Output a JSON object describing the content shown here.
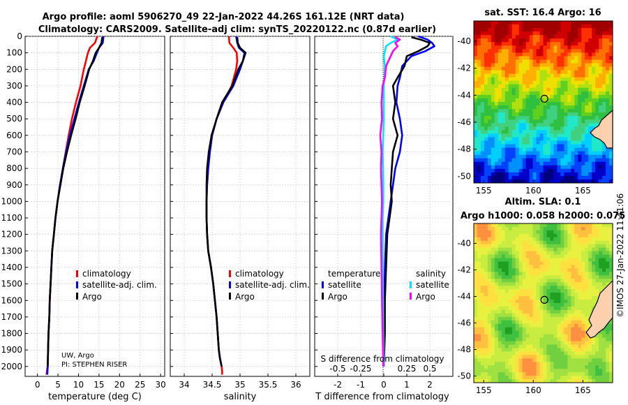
{
  "title_line1": "Argo profile: aoml 5906270_49 22-Jan-2022 44.26S 161.12E (NRT data)",
  "title_line2": "Climatology: CARS2009. Satellite-adj clim: synTS_20220122.nc (0.87d earlier)",
  "depth_ticks": [
    0,
    100,
    200,
    300,
    400,
    500,
    600,
    700,
    800,
    900,
    1000,
    1100,
    1200,
    1300,
    1400,
    1500,
    1600,
    1700,
    1800,
    1900,
    2000
  ],
  "footer": {
    "line1": "UW, Argo",
    "line2": "PI: STEPHEN RISER"
  },
  "colors": {
    "climatology": "#ff0000",
    "satellite": "#0000ff",
    "argo": "#000000",
    "sat_salinity": "#00e5ff",
    "argo_salinity": "#ff00ff"
  },
  "chart_data": [
    {
      "type": "line",
      "xlabel": "temperature (deg C)",
      "xlim": [
        -3,
        31
      ],
      "xticks": [
        0,
        5,
        10,
        15,
        20,
        25,
        30
      ],
      "ylim": [
        2060,
        0
      ],
      "legend": [
        "climatology",
        "satellite-adj. clim.",
        "Argo"
      ],
      "series": [
        {
          "name": "climatology",
          "x": [
            14.6,
            14.0,
            12.8,
            12.3,
            11.8,
            11.3,
            10.5,
            9.4,
            8.4,
            7.6,
            6.9,
            6.2,
            5.5,
            4.9,
            4.4,
            4.0,
            3.6,
            3.4,
            3.2,
            3.0,
            2.9,
            2.7,
            2.6,
            2.5,
            2.4,
            2.3,
            2.2
          ],
          "y": [
            0,
            40,
            70,
            100,
            150,
            200,
            300,
            400,
            500,
            600,
            700,
            800,
            900,
            1000,
            1100,
            1200,
            1300,
            1400,
            1500,
            1600,
            1700,
            1800,
            1900,
            2000,
            2010,
            2030,
            2050
          ]
        },
        {
          "name": "satellite-adj. clim.",
          "x": [
            16.1,
            15.9,
            15.0,
            14.5,
            13.7,
            12.5,
            11.3,
            10.1,
            9.0,
            7.9,
            7.0,
            6.2,
            5.5,
            4.9,
            4.4,
            4.0,
            3.6,
            3.4,
            3.2,
            3.0,
            2.9,
            2.7,
            2.6,
            2.5,
            2.4
          ],
          "y": [
            0,
            40,
            70,
            100,
            150,
            200,
            300,
            400,
            500,
            600,
            700,
            800,
            900,
            1000,
            1100,
            1200,
            1300,
            1400,
            1500,
            1600,
            1700,
            1800,
            1900,
            2000,
            2050
          ]
        },
        {
          "name": "Argo",
          "x": [
            15.8,
            15.6,
            15.0,
            14.2,
            13.5,
            12.6,
            11.5,
            10.3,
            9.3,
            8.2,
            7.2,
            6.3,
            5.6,
            4.9,
            4.4,
            4.0,
            3.6,
            3.4,
            3.2,
            3.0,
            2.9,
            2.7,
            2.6,
            2.5
          ],
          "y": [
            5,
            40,
            70,
            100,
            150,
            200,
            300,
            400,
            500,
            600,
            700,
            800,
            900,
            1000,
            1100,
            1200,
            1300,
            1400,
            1500,
            1600,
            1700,
            1800,
            1900,
            2000
          ]
        }
      ]
    },
    {
      "type": "line",
      "xlabel": "salinity",
      "xlim": [
        33.75,
        36.25
      ],
      "xticks": [
        34,
        34.5,
        35,
        35.5,
        36
      ],
      "ylim": [
        2060,
        0
      ],
      "legend": [
        "climatology",
        "satellite-adj. clim.",
        "Argo"
      ],
      "series": [
        {
          "name": "climatology",
          "x": [
            34.8,
            34.81,
            34.88,
            34.94,
            34.95,
            34.93,
            34.85,
            34.7,
            34.58,
            34.5,
            34.46,
            34.43,
            34.41,
            34.4,
            34.4,
            34.41,
            34.43,
            34.48,
            34.52,
            34.55,
            34.58,
            34.6,
            34.62,
            34.64,
            34.67,
            34.68,
            34.68
          ],
          "y": [
            0,
            40,
            70,
            100,
            150,
            200,
            300,
            400,
            500,
            600,
            700,
            800,
            900,
            1000,
            1100,
            1200,
            1300,
            1400,
            1500,
            1600,
            1700,
            1800,
            1900,
            1950,
            2000,
            2030,
            2050
          ]
        },
        {
          "name": "satellite-adj. clim.",
          "x": [
            34.93,
            34.95,
            34.98,
            35.08,
            35.05,
            35.0,
            34.88,
            34.7,
            34.58,
            34.5,
            34.46,
            34.43,
            34.41,
            34.4,
            34.4,
            34.41,
            34.43,
            34.48,
            34.52,
            34.55,
            34.58,
            34.6,
            34.62,
            34.64,
            34.67
          ],
          "y": [
            0,
            40,
            70,
            100,
            150,
            200,
            300,
            400,
            500,
            600,
            700,
            800,
            900,
            1000,
            1100,
            1200,
            1300,
            1400,
            1500,
            1600,
            1700,
            1800,
            1900,
            1950,
            2000
          ]
        },
        {
          "name": "Argo",
          "x": [
            34.95,
            34.96,
            35.0,
            35.1,
            35.05,
            34.97,
            34.86,
            34.68,
            34.58,
            34.49,
            34.44,
            34.41,
            34.4,
            34.4,
            34.4,
            34.41,
            34.43,
            34.48,
            34.52,
            34.55,
            34.58,
            34.6,
            34.62,
            34.64,
            34.67
          ],
          "y": [
            5,
            40,
            70,
            100,
            150,
            200,
            300,
            400,
            500,
            600,
            700,
            800,
            900,
            1000,
            1100,
            1200,
            1300,
            1400,
            1500,
            1600,
            1700,
            1800,
            1900,
            1950,
            2000
          ]
        }
      ]
    },
    {
      "type": "line",
      "xlabel": "T difference from climatology",
      "top_xlabel": "S difference from climatology",
      "xlim": [
        -3,
        3
      ],
      "xticks": [
        -2,
        -1,
        0,
        1,
        2
      ],
      "top_ticks": [
        {
          "value": -0.5,
          "label": "-0.5",
          "x_t": -2
        },
        {
          "value": -0.25,
          "label": "-0.25",
          "x_t": -1
        },
        {
          "value": 0.25,
          "label": "0.25",
          "x_t": 1
        },
        {
          "value": 0.5,
          "label": "0.5",
          "x_t": 2
        }
      ],
      "ylim": [
        2060,
        0
      ],
      "legend_headers": [
        "temperature",
        "salinity"
      ],
      "legend": [
        "satellite",
        "Argo",
        "satellite",
        "Argo"
      ],
      "series": [
        {
          "name": "temperature satellite",
          "x": [
            1.5,
            1.9,
            2.1,
            2.2,
            1.8,
            1.2,
            0.8,
            0.7,
            0.6,
            0.55,
            0.7,
            0.8,
            0.7,
            0.5,
            0.4,
            0.3,
            0.2,
            0.1,
            0.05,
            0.02,
            0.0,
            0.0
          ],
          "y": [
            0,
            20,
            40,
            60,
            90,
            120,
            180,
            250,
            300,
            400,
            500,
            600,
            700,
            800,
            900,
            1000,
            1100,
            1200,
            1400,
            1600,
            1800,
            2000
          ]
        },
        {
          "name": "temperature Argo",
          "x": [
            1.2,
            1.6,
            2.0,
            1.9,
            1.5,
            1.0,
            0.9,
            0.6,
            0.4,
            0.5,
            0.4,
            0.6,
            0.4,
            0.35,
            0.3,
            0.35,
            0.25,
            0.15,
            0.1,
            0.05,
            0.05,
            0.0
          ],
          "y": [
            5,
            20,
            40,
            60,
            90,
            120,
            180,
            250,
            300,
            400,
            500,
            600,
            700,
            800,
            900,
            1000,
            1100,
            1200,
            1400,
            1600,
            1800,
            2000
          ]
        },
        {
          "name": "salinity satellite",
          "x": [
            0.3,
            0.6,
            0.3,
            0.1,
            0.05,
            0.0,
            0.05,
            0.02,
            0.0,
            0.0,
            0.0,
            -0.02,
            -0.05,
            -0.03,
            -0.02,
            -0.02,
            -0.05,
            -0.05,
            -0.05,
            -0.03,
            -0.02,
            0.0
          ],
          "y": [
            0,
            20,
            40,
            60,
            90,
            120,
            180,
            250,
            300,
            400,
            500,
            600,
            700,
            800,
            900,
            1000,
            1100,
            1200,
            1400,
            1600,
            1800,
            2000
          ]
        },
        {
          "name": "salinity Argo",
          "x": [
            0.5,
            0.7,
            0.5,
            0.6,
            0.4,
            0.3,
            0.1,
            0.05,
            -0.05,
            -0.1,
            -0.08,
            -0.15,
            -0.1,
            -0.12,
            -0.1,
            -0.08,
            -0.1,
            -0.12,
            -0.1,
            -0.08,
            -0.05,
            -0.02
          ],
          "y": [
            5,
            20,
            40,
            60,
            90,
            120,
            180,
            250,
            300,
            400,
            500,
            600,
            700,
            800,
            900,
            1000,
            1100,
            1200,
            1400,
            1600,
            1800,
            2000
          ]
        }
      ]
    }
  ],
  "maps": [
    {
      "type": "heatmap",
      "title": "sat. SST: 16.4 Argo: 16",
      "xticks": [
        155,
        160,
        165
      ],
      "yticks": [
        -40,
        -42,
        -44,
        -46,
        -48,
        -50
      ],
      "xlim": [
        154,
        168
      ],
      "ylim": [
        -50.5,
        -38.5
      ],
      "marker": {
        "lon": 161.12,
        "lat": -44.26
      }
    },
    {
      "type": "heatmap",
      "title_line1": "Altim. SLA: 0.1",
      "title_line2": "Argo h1000: 0.058 h2000: 0.075",
      "xticks": [
        155,
        160,
        165
      ],
      "yticks": [
        -40,
        -42,
        -44,
        -46,
        -48,
        -50
      ],
      "xlim": [
        154,
        168
      ],
      "ylim": [
        -50.5,
        -38.5
      ],
      "marker": {
        "lon": 161.12,
        "lat": -44.26
      }
    }
  ],
  "stamp": "©IMOS 27-Jan-2022 11:41:06"
}
